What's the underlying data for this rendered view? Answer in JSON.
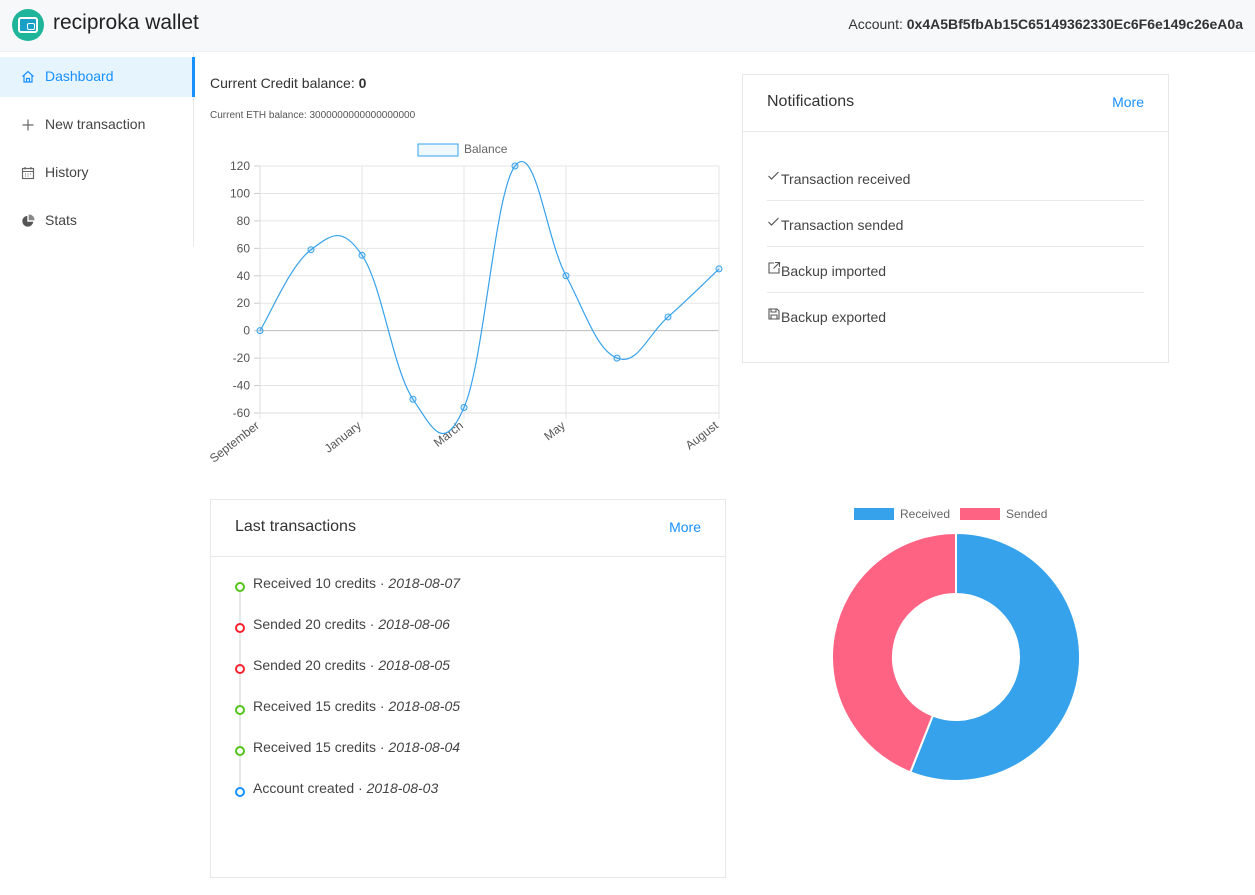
{
  "app": {
    "title": "reciproka wallet"
  },
  "account": {
    "label": "Account:",
    "address": "0x4A5Bf5fbAb15C65149362330Ec6F6e149c26eA0a"
  },
  "sidebar": {
    "items": [
      {
        "label": "Dashboard",
        "icon": "home-icon",
        "active": true
      },
      {
        "label": "New transaction",
        "icon": "plus-icon",
        "active": false
      },
      {
        "label": "History",
        "icon": "calendar-icon",
        "active": false
      },
      {
        "label": "Stats",
        "icon": "pie-chart-icon",
        "active": false
      }
    ]
  },
  "balance": {
    "credit_label": "Current Credit balance:",
    "credit_value": "0",
    "eth_label": "Current ETH balance:",
    "eth_value": "3000000000000000000"
  },
  "notifications": {
    "title": "Notifications",
    "more": "More",
    "items": [
      {
        "label": "Transaction received",
        "icon": "check-icon"
      },
      {
        "label": "Transaction sended",
        "icon": "check-icon"
      },
      {
        "label": "Backup imported",
        "icon": "export-icon"
      },
      {
        "label": "Backup exported",
        "icon": "save-icon"
      }
    ]
  },
  "transactions": {
    "title": "Last transactions",
    "more": "More",
    "items": [
      {
        "text": "Received 10 credits",
        "date": "2018-08-07",
        "status": "received"
      },
      {
        "text": "Sended 20 credits",
        "date": "2018-08-06",
        "status": "sended"
      },
      {
        "text": "Sended 20 credits",
        "date": "2018-08-05",
        "status": "sended"
      },
      {
        "text": "Received 15 credits",
        "date": "2018-08-05",
        "status": "received"
      },
      {
        "text": "Received 15 credits",
        "date": "2018-08-04",
        "status": "received"
      },
      {
        "text": "Account created",
        "date": "2018-08-03",
        "status": "created"
      }
    ]
  },
  "colors": {
    "accent": "#1890ff",
    "received": "#52c41a",
    "sended": "#f5222d",
    "created": "#1890ff",
    "line": "#36a2eb",
    "donut_received": "#36a2eb",
    "donut_sended": "#ff6384"
  },
  "chart_data": [
    {
      "type": "line",
      "legend": [
        "Balance"
      ],
      "legend_position": "top",
      "x_tick_labels": [
        "September",
        "January",
        "March",
        "May",
        "August"
      ],
      "series": [
        {
          "name": "Balance",
          "values": [
            0,
            59,
            55,
            -50,
            -56,
            120,
            40,
            -20,
            10,
            45
          ]
        }
      ],
      "y_ticks": [
        120,
        100,
        80,
        60,
        40,
        20,
        0,
        -20,
        -40,
        -60
      ],
      "ylim": [
        -60,
        120
      ],
      "grid": true
    },
    {
      "type": "pie",
      "variant": "doughnut",
      "labels": [
        "Received",
        "Sended"
      ],
      "values": [
        56,
        44
      ],
      "legend_position": "top"
    }
  ]
}
